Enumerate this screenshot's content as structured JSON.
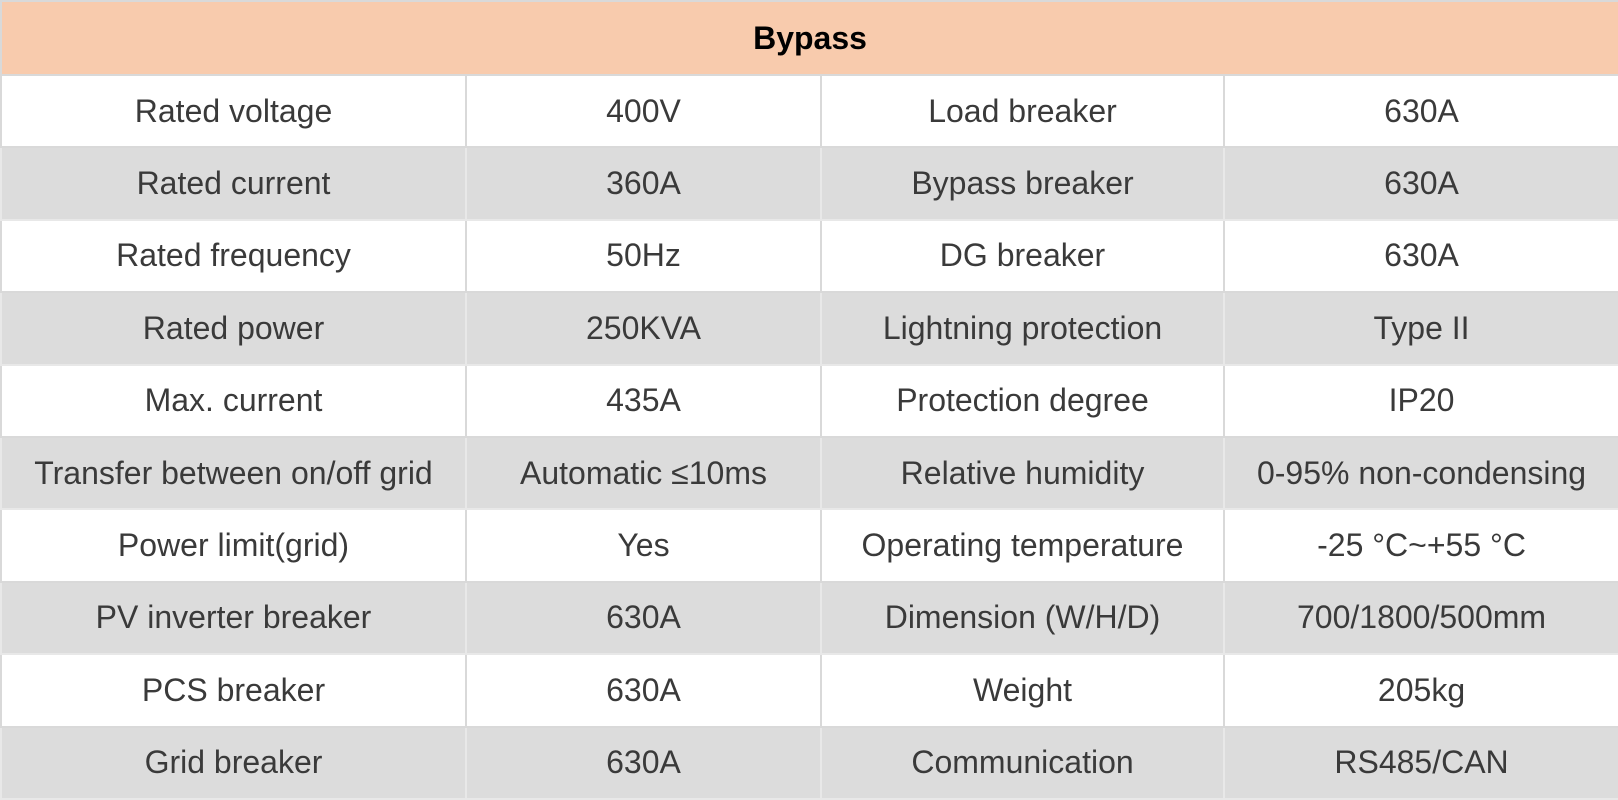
{
  "table": {
    "header": "Bypass",
    "rows": [
      [
        "Rated voltage",
        "400V",
        "Load breaker",
        "630A"
      ],
      [
        "Rated current",
        "360A",
        "Bypass breaker",
        "630A"
      ],
      [
        "Rated frequency",
        "50Hz",
        "DG breaker",
        "630A"
      ],
      [
        "Rated power",
        "250KVA",
        "Lightning protection",
        "Type II"
      ],
      [
        "Max. current",
        "435A",
        "Protection degree",
        "IP20"
      ],
      [
        "Transfer between on/off grid",
        "Automatic ≤10ms",
        "Relative humidity",
        "0-95% non-condensing"
      ],
      [
        "Power limit(grid)",
        "Yes",
        "Operating temperature",
        "-25 °C~+55 °C"
      ],
      [
        "PV inverter breaker",
        "630A",
        "Dimension (W/H/D)",
        "700/1800/500mm"
      ],
      [
        "PCS breaker",
        "630A",
        "Weight",
        "205kg"
      ],
      [
        "Grid breaker",
        "630A",
        "Communication",
        "RS485/CAN"
      ]
    ]
  },
  "colors": {
    "header_bg": "#f8cbad",
    "row_alt_bg": "#dcdcdc",
    "row_bg": "#ffffff",
    "text": "#3a3a3a"
  }
}
